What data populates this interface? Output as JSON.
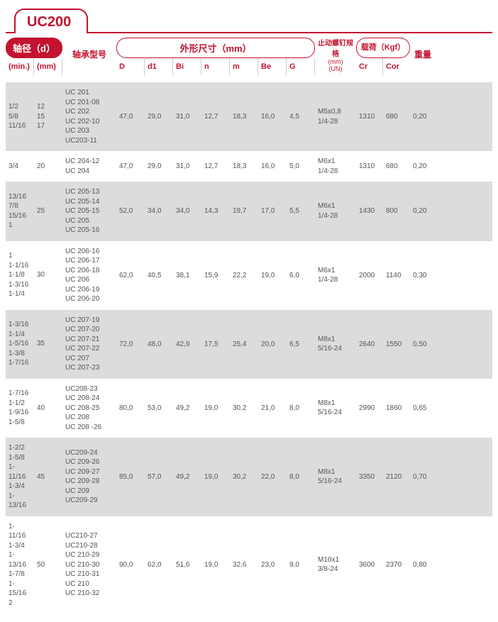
{
  "title": "UC200",
  "header": {
    "shaft_group": "轴径（d）",
    "shaft_sub1": "(min.)",
    "shaft_sub2": "(mm)",
    "bearing": "轴承型号",
    "dims_group": "外形尺寸（mm）",
    "dims": [
      "D",
      "d1",
      "Bi",
      "n",
      "m",
      "Be",
      "G"
    ],
    "screw_group": "止动螺钉规格",
    "screw_sub": "(mm)\n(UN)",
    "load_group": "载荷（Kgf）",
    "load_sub": [
      "Cr",
      "Cor"
    ],
    "weight": "重量"
  },
  "rows": [
    {
      "alt": true,
      "min": [
        "1/2",
        "5/8",
        "11/16"
      ],
      "mm": [
        "12",
        "15",
        "17"
      ],
      "models": [
        "UC 201",
        "UC 201-08",
        "UC 202",
        "UC 202-10",
        "UC 203",
        "UC203-11"
      ],
      "D": "47,0",
      "d1": "29,0",
      "Bi": "31,0",
      "n": "12,7",
      "m": "18,3",
      "Be": "16,0",
      "G": "4,5",
      "screw": [
        "M5x0,8",
        "1/4-28"
      ],
      "Cr": "1310",
      "Cor": "680",
      "w": "0,20"
    },
    {
      "alt": false,
      "min": [
        "3/4"
      ],
      "mm": [
        "20"
      ],
      "models": [
        "UC 204-12",
        "UC 204"
      ],
      "D": "47,0",
      "d1": "29,0",
      "Bi": "31,0",
      "n": "12,7",
      "m": "18,3",
      "Be": "16,0",
      "G": "5,0",
      "screw": [
        "M6x1",
        "1/4-28"
      ],
      "Cr": "1310",
      "Cor": "680",
      "w": "0,20"
    },
    {
      "alt": true,
      "min": [
        "13/16",
        "7/8",
        "15/16",
        "1"
      ],
      "mm": [
        "25"
      ],
      "models": [
        "UC 205-13",
        "UC 205-14",
        "UC 205-15",
        "UC 205",
        "UC 205-16"
      ],
      "D": "52,0",
      "d1": "34,0",
      "Bi": "34,0",
      "n": "14,3",
      "m": "19,7",
      "Be": "17,0",
      "G": "5,5",
      "screw": [
        "M6x1",
        "1/4-28"
      ],
      "Cr": "1430",
      "Cor": "800",
      "w": "0,20"
    },
    {
      "alt": false,
      "min": [
        "1",
        "1-1/16",
        "1-1/8",
        "1-3/16",
        "1-1/4"
      ],
      "mm": [
        "30"
      ],
      "models": [
        "UC 206-16",
        "UC 206-17",
        "UC 206-18",
        "UC 206",
        "UC 206-19",
        "UC 206-20"
      ],
      "D": "62,0",
      "d1": "40,5",
      "Bi": "38,1",
      "n": "15,9",
      "m": "22,2",
      "Be": "19,0",
      "G": "6,0",
      "screw": [
        "M6x1",
        "1/4-28"
      ],
      "Cr": "2000",
      "Cor": "1140",
      "w": "0,30"
    },
    {
      "alt": true,
      "min": [
        "1-3/16",
        "1-1/4",
        "1-5/16",
        "1-3/8",
        "1-7/16"
      ],
      "mm": [
        "35"
      ],
      "models": [
        "UC 207-19",
        "UC 207-20",
        "UC 207-21",
        "UC 207-22",
        "UC 207",
        "UC 207-23"
      ],
      "D": "72,0",
      "d1": "48,0",
      "Bi": "42,9",
      "n": "17,5",
      "m": "25,4",
      "Be": "20,0",
      "G": "6,5",
      "screw": [
        "M8x1",
        "5/16-24"
      ],
      "Cr": "2640",
      "Cor": "1550",
      "w": "0,50"
    },
    {
      "alt": false,
      "min": [
        "1-7/16",
        "1-1/2",
        "1-9/16",
        "1-5/8"
      ],
      "mm": [
        "40"
      ],
      "models": [
        "UC208-23",
        "UC 208-24",
        "UC 208-25",
        "UC 208",
        "UC 208 -26"
      ],
      "D": "80,0",
      "d1": "53,0",
      "Bi": "49,2",
      "n": "19,0",
      "m": "30,2",
      "Be": "21,0",
      "G": "8,0",
      "screw": [
        "M8x1",
        "5/16-24"
      ],
      "Cr": "2990",
      "Cor": "1860",
      "w": "0,65"
    },
    {
      "alt": true,
      "min": [
        "1-2/2",
        "1-5/8",
        "1-11/16",
        "1-3/4",
        "1-13/16"
      ],
      "mm": [
        "45"
      ],
      "models": [
        "UC209-24",
        "UC 209-26",
        "UC 209-27",
        "UC 209-28",
        "UC 209",
        "UC209-29"
      ],
      "D": "85,0",
      "d1": "57,0",
      "Bi": "49,2",
      "n": "19,0",
      "m": "30,2",
      "Be": "22,0",
      "G": "8,0",
      "screw": [
        "M8x1",
        "5/16-24"
      ],
      "Cr": "3350",
      "Cor": "2120",
      "w": "0,70"
    },
    {
      "alt": false,
      "min": [
        "1-11/16",
        "1-3/4",
        "1-13/16",
        "1-7/8",
        "1-15/16",
        "2"
      ],
      "mm": [
        "50"
      ],
      "models": [
        "UC210-27",
        "UC210-28",
        "UC 210-29",
        "UC 210-30",
        "UC 210-31",
        "UC 210",
        "UC 210-32"
      ],
      "D": "90,0",
      "d1": "62,0",
      "Bi": "51,6",
      "n": "19,0",
      "m": "32,6",
      "Be": "23,0",
      "G": "9,0",
      "screw": [
        "M10x1",
        "3/8-24"
      ],
      "Cr": "3600",
      "Cor": "2370",
      "w": "0,80"
    }
  ]
}
